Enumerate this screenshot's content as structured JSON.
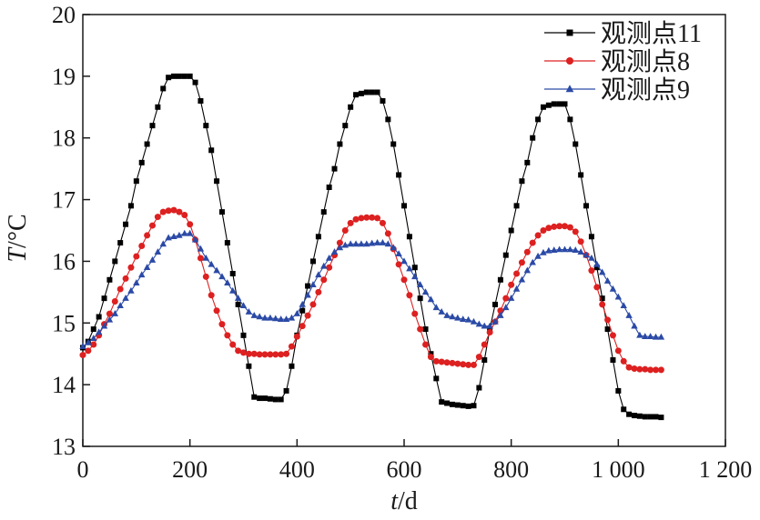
{
  "chart_data": {
    "type": "line",
    "xlabel": {
      "italic": "t",
      "rest": "/d"
    },
    "ylabel": {
      "italic": "T",
      "rest": "/°C"
    },
    "xlim": [
      0,
      1200
    ],
    "ylim": [
      13,
      20
    ],
    "xticks": [
      0,
      200,
      400,
      600,
      800,
      1000,
      1200
    ],
    "xtick_labels": [
      "0",
      "200",
      "400",
      "600",
      "800",
      "1 000",
      "1 200"
    ],
    "yticks": [
      13,
      14,
      15,
      16,
      17,
      18,
      19,
      20
    ],
    "ytick_labels": [
      "13",
      "14",
      "15",
      "16",
      "17",
      "18",
      "19",
      "20"
    ],
    "grid": false,
    "legend_position": "top-right",
    "series": [
      {
        "name": "观测点11",
        "color": "#000000",
        "marker": "square",
        "x": [
          0,
          10,
          20,
          30,
          40,
          50,
          60,
          70,
          80,
          90,
          100,
          110,
          120,
          130,
          140,
          150,
          160,
          170,
          180,
          190,
          200,
          210,
          220,
          230,
          240,
          250,
          260,
          270,
          280,
          290,
          300,
          310,
          320,
          330,
          340,
          350,
          360,
          370,
          380,
          390,
          400,
          410,
          420,
          430,
          440,
          450,
          460,
          470,
          480,
          490,
          500,
          510,
          520,
          530,
          540,
          550,
          560,
          570,
          580,
          590,
          600,
          610,
          620,
          630,
          640,
          650,
          660,
          670,
          680,
          690,
          700,
          710,
          720,
          730,
          740,
          750,
          760,
          770,
          780,
          790,
          800,
          810,
          820,
          830,
          840,
          850,
          860,
          870,
          880,
          890,
          900,
          910,
          920,
          930,
          940,
          950,
          960,
          970,
          980,
          990,
          1000,
          1010,
          1020,
          1030,
          1040,
          1050,
          1060,
          1070,
          1080
        ],
        "y": [
          14.6,
          14.7,
          14.9,
          15.1,
          15.4,
          15.7,
          16.0,
          16.3,
          16.6,
          16.9,
          17.3,
          17.6,
          17.9,
          18.2,
          18.5,
          18.8,
          18.98,
          19.0,
          19.0,
          19.0,
          19.0,
          18.9,
          18.6,
          18.2,
          17.8,
          17.3,
          16.8,
          16.3,
          15.8,
          15.3,
          14.8,
          14.3,
          13.8,
          13.78,
          13.78,
          13.77,
          13.76,
          13.76,
          13.9,
          14.3,
          14.8,
          15.2,
          15.6,
          16.0,
          16.4,
          16.8,
          17.2,
          17.5,
          17.9,
          18.2,
          18.5,
          18.7,
          18.72,
          18.74,
          18.74,
          18.74,
          18.6,
          18.3,
          17.9,
          17.4,
          16.9,
          16.4,
          15.9,
          15.4,
          14.9,
          14.5,
          14.1,
          13.72,
          13.7,
          13.68,
          13.67,
          13.66,
          13.65,
          13.66,
          13.95,
          14.4,
          14.9,
          15.3,
          15.7,
          16.1,
          16.5,
          16.9,
          17.3,
          17.6,
          18.0,
          18.3,
          18.5,
          18.53,
          18.55,
          18.55,
          18.55,
          18.3,
          17.9,
          17.4,
          16.9,
          16.4,
          15.9,
          15.4,
          14.9,
          14.4,
          13.9,
          13.6,
          13.52,
          13.5,
          13.49,
          13.48,
          13.48,
          13.48,
          13.47
        ]
      },
      {
        "name": "观测点8",
        "color": "#dd2020",
        "marker": "circle",
        "x": [
          0,
          10,
          20,
          30,
          40,
          50,
          60,
          70,
          80,
          90,
          100,
          110,
          120,
          130,
          140,
          150,
          160,
          170,
          180,
          190,
          200,
          210,
          220,
          230,
          240,
          250,
          260,
          270,
          280,
          290,
          300,
          310,
          320,
          330,
          340,
          350,
          360,
          370,
          380,
          390,
          400,
          410,
          420,
          430,
          440,
          450,
          460,
          470,
          480,
          490,
          500,
          510,
          520,
          530,
          540,
          550,
          560,
          570,
          580,
          590,
          600,
          610,
          620,
          630,
          640,
          650,
          660,
          670,
          680,
          690,
          700,
          710,
          720,
          730,
          740,
          750,
          760,
          770,
          780,
          790,
          800,
          810,
          820,
          830,
          840,
          850,
          860,
          870,
          880,
          890,
          900,
          910,
          920,
          930,
          940,
          950,
          960,
          970,
          980,
          990,
          1000,
          1010,
          1020,
          1030,
          1040,
          1050,
          1060,
          1070,
          1080
        ],
        "y": [
          14.48,
          14.55,
          14.65,
          14.8,
          14.98,
          15.15,
          15.35,
          15.55,
          15.72,
          15.9,
          16.08,
          16.25,
          16.42,
          16.58,
          16.72,
          16.8,
          16.82,
          16.83,
          16.8,
          16.75,
          16.6,
          16.35,
          16.05,
          15.75,
          15.45,
          15.2,
          14.98,
          14.8,
          14.65,
          14.55,
          14.52,
          14.5,
          14.5,
          14.49,
          14.49,
          14.49,
          14.49,
          14.49,
          14.5,
          14.62,
          14.78,
          14.95,
          15.12,
          15.3,
          15.5,
          15.7,
          15.9,
          16.1,
          16.3,
          16.5,
          16.62,
          16.68,
          16.7,
          16.71,
          16.71,
          16.7,
          16.62,
          16.45,
          16.2,
          15.95,
          15.7,
          15.45,
          15.15,
          14.9,
          14.65,
          14.45,
          14.38,
          14.37,
          14.36,
          14.35,
          14.34,
          14.33,
          14.32,
          14.32,
          14.45,
          14.65,
          14.85,
          15.02,
          15.2,
          15.4,
          15.62,
          15.8,
          15.98,
          16.15,
          16.3,
          16.42,
          16.5,
          16.54,
          16.56,
          16.57,
          16.57,
          16.55,
          16.48,
          16.32,
          16.1,
          15.85,
          15.58,
          15.3,
          15.05,
          14.8,
          14.55,
          14.38,
          14.28,
          14.26,
          14.25,
          14.25,
          14.24,
          14.24,
          14.24
        ]
      },
      {
        "name": "观测点9",
        "color": "#2b4aa6",
        "marker": "triangle",
        "x": [
          0,
          10,
          20,
          30,
          40,
          50,
          60,
          70,
          80,
          90,
          100,
          110,
          120,
          130,
          140,
          150,
          160,
          170,
          180,
          190,
          200,
          210,
          220,
          230,
          240,
          250,
          260,
          270,
          280,
          290,
          300,
          310,
          320,
          330,
          340,
          350,
          360,
          370,
          380,
          390,
          400,
          410,
          420,
          430,
          440,
          450,
          460,
          470,
          480,
          490,
          500,
          510,
          520,
          530,
          540,
          550,
          560,
          570,
          580,
          590,
          600,
          610,
          620,
          630,
          640,
          650,
          660,
          670,
          680,
          690,
          700,
          710,
          720,
          730,
          740,
          750,
          760,
          770,
          780,
          790,
          800,
          810,
          820,
          830,
          840,
          850,
          860,
          870,
          880,
          890,
          900,
          910,
          920,
          930,
          940,
          950,
          960,
          970,
          980,
          990,
          1000,
          1010,
          1020,
          1030,
          1040,
          1050,
          1060,
          1070,
          1080
        ],
        "y": [
          14.62,
          14.68,
          14.75,
          14.85,
          14.95,
          15.05,
          15.15,
          15.28,
          15.4,
          15.52,
          15.65,
          15.78,
          15.9,
          16.02,
          16.15,
          16.28,
          16.38,
          16.4,
          16.42,
          16.45,
          16.45,
          16.35,
          16.2,
          16.05,
          15.95,
          15.85,
          15.75,
          15.65,
          15.52,
          15.4,
          15.28,
          15.18,
          15.12,
          15.1,
          15.08,
          15.08,
          15.07,
          15.06,
          15.06,
          15.08,
          15.15,
          15.3,
          15.45,
          15.62,
          15.78,
          15.92,
          16.05,
          16.15,
          16.22,
          16.26,
          16.28,
          16.28,
          16.28,
          16.28,
          16.29,
          16.3,
          16.3,
          16.28,
          16.22,
          16.12,
          16.0,
          15.88,
          15.75,
          15.62,
          15.5,
          15.38,
          15.25,
          15.18,
          15.12,
          15.1,
          15.08,
          15.06,
          15.05,
          15.02,
          14.98,
          14.95,
          14.95,
          15.02,
          15.12,
          15.25,
          15.4,
          15.55,
          15.7,
          15.85,
          15.98,
          16.08,
          16.14,
          16.17,
          16.18,
          16.19,
          16.19,
          16.19,
          16.18,
          16.15,
          16.1,
          16.05,
          15.95,
          15.82,
          15.68,
          15.55,
          15.42,
          15.28,
          15.12,
          14.95,
          14.8,
          14.78,
          14.78,
          14.77,
          14.77
        ]
      }
    ]
  }
}
